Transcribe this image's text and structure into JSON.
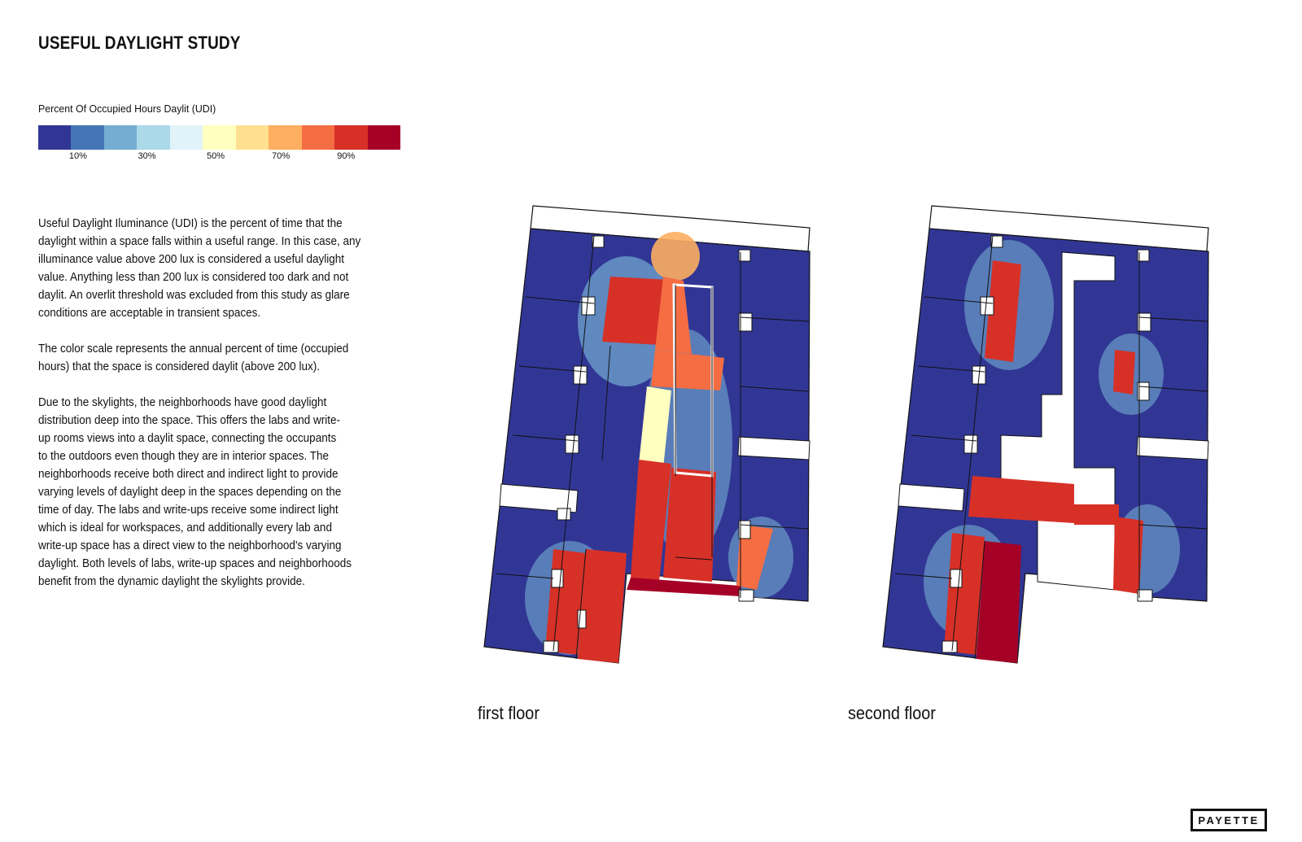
{
  "title": "USEFUL DAYLIGHT STUDY",
  "legend": {
    "title": "Percent Of Occupied Hours Daylit (UDI)",
    "colors": [
      "#313695",
      "#4575b4",
      "#74add1",
      "#abd9e9",
      "#e0f3f8",
      "#ffffbf",
      "#fee090",
      "#fdae61",
      "#f46d43",
      "#d73027",
      "#a50026"
    ],
    "ticks": [
      {
        "label": "10%",
        "value": 10
      },
      {
        "label": "30%",
        "value": 30
      },
      {
        "label": "50%",
        "value": 50
      },
      {
        "label": "70%",
        "value": 70
      },
      {
        "label": "90%",
        "value": 90
      }
    ]
  },
  "paragraphs": {
    "p1": [
      "Useful Daylight Iluminance (UDI) is the percent of time that the",
      "daylight within a space falls within a useful range. In this case, any",
      "illuminance value above 200 lux is considered a useful daylight",
      "value. Anything less than 200 lux is considered too dark and not",
      "daylit. An overlit threshold was excluded from this study as glare",
      "conditions are acceptable in transient spaces."
    ],
    "p2": [
      "The color scale represents the annual percent of time (occupied",
      "hours) that the space is considered daylit (above 200 lux)."
    ],
    "p3": [
      "Due to the skylights, the neighborhoods have good daylight",
      "distribution deep into the space. This offers the labs and write-",
      "up rooms views into a daylit space, connecting the occupants",
      "to the outdoors even though they are in interior spaces. The",
      "neighborhoods receive both direct and indirect light to provide",
      "varying levels of daylight deep in the spaces depending on the",
      "time of day. The labs and write-ups receive some indirect light",
      "which is ideal for workspaces, and additionally every lab and",
      "write-up space has a direct view to the neighborhood's varying",
      "daylight. Both levels of labs, write-up spaces and neighborhoods",
      "benefit from the dynamic daylight the skylights provide."
    ]
  },
  "floors": {
    "first": "first floor",
    "second": "second floor"
  },
  "logo": "PAYETTE"
}
